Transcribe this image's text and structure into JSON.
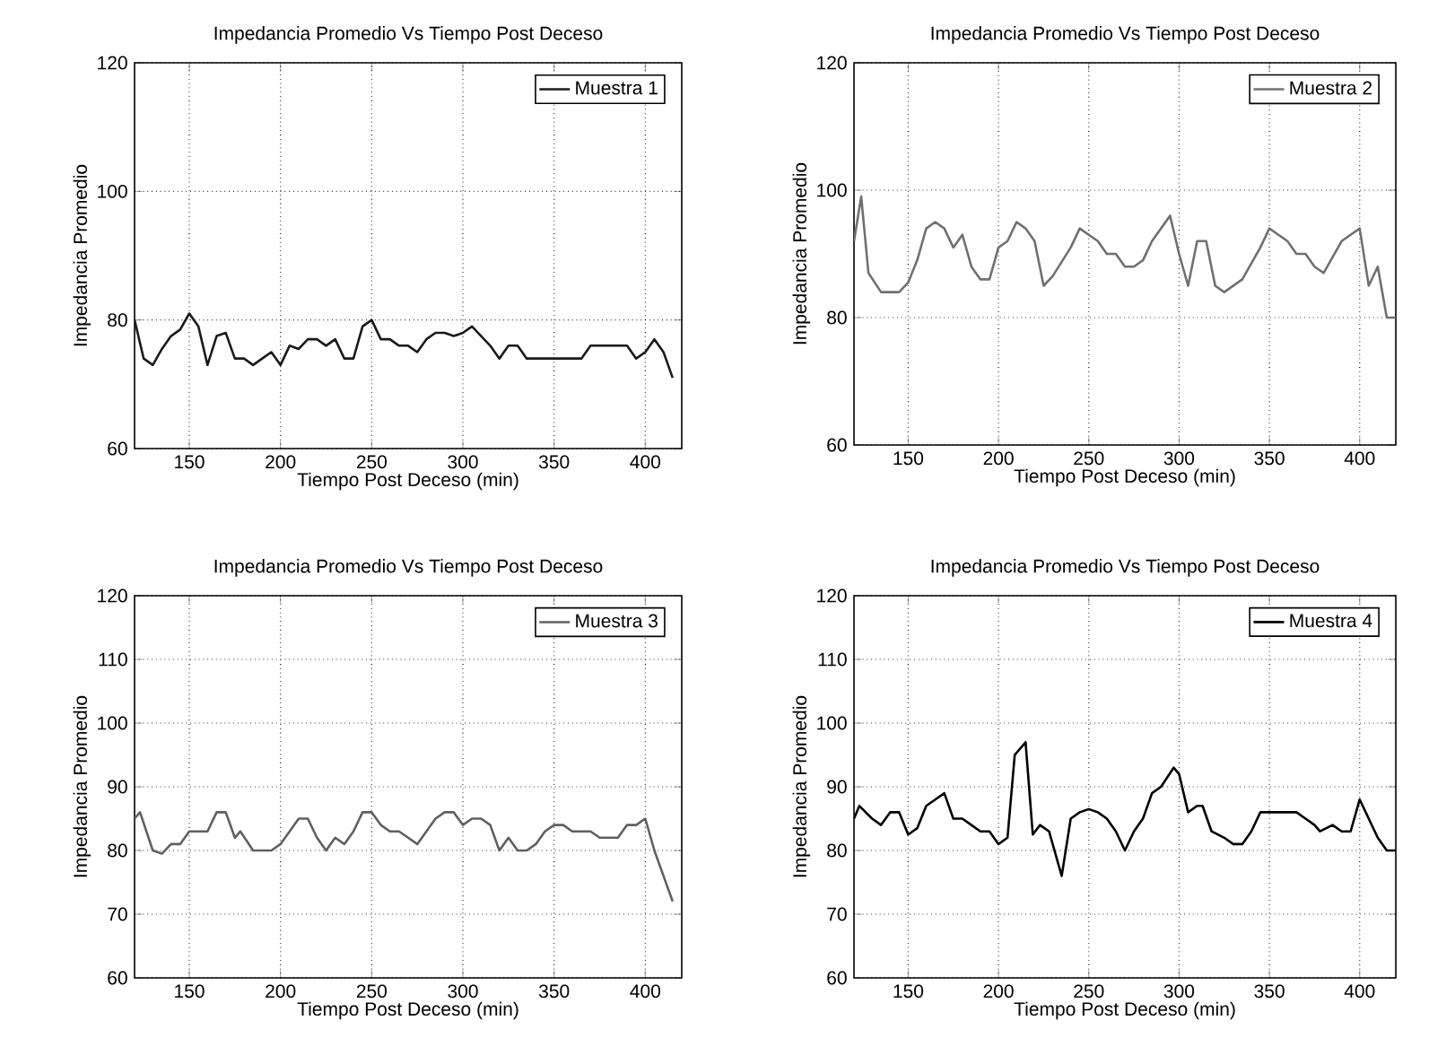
{
  "chart_data": [
    {
      "type": "line",
      "title": "Impedancia Promedio Vs Tiempo Post Deceso",
      "xlabel": "Tiempo Post Deceso (min)",
      "ylabel": "Impedancia Promedio",
      "xlim": [
        120,
        420
      ],
      "ylim": [
        60,
        120
      ],
      "xticks": [
        150,
        200,
        250,
        300,
        350,
        400
      ],
      "yticks": [
        60,
        80,
        100,
        120
      ],
      "grid": true,
      "legend": "top right",
      "series": [
        {
          "name": "Muestra 1",
          "color": "#1a1a1a",
          "x": [
            120,
            125,
            130,
            135,
            140,
            145,
            150,
            155,
            160,
            165,
            170,
            175,
            180,
            185,
            190,
            195,
            200,
            205,
            210,
            215,
            220,
            225,
            230,
            235,
            240,
            245,
            250,
            255,
            260,
            265,
            270,
            275,
            280,
            285,
            290,
            295,
            300,
            305,
            310,
            315,
            320,
            325,
            330,
            335,
            340,
            345,
            350,
            355,
            360,
            365,
            370,
            375,
            380,
            385,
            390,
            395,
            400,
            405,
            410,
            415
          ],
          "values": [
            80,
            74,
            73,
            75.5,
            77.5,
            78.5,
            81,
            79,
            73,
            77.5,
            78,
            74,
            74,
            73,
            74,
            75,
            73,
            76,
            75.5,
            77,
            77,
            76,
            77,
            74,
            74,
            79,
            80,
            77,
            77,
            76,
            76,
            75,
            77,
            78,
            78,
            77.5,
            78,
            79,
            77.5,
            76,
            74,
            76,
            76,
            74,
            74,
            74,
            74,
            74,
            74,
            74,
            76,
            76,
            76,
            76,
            76,
            74,
            75,
            77,
            75,
            71
          ]
        }
      ]
    },
    {
      "type": "line",
      "title": "Impedancia Promedio Vs Tiempo Post Deceso",
      "xlabel": "Tiempo Post Deceso (min)",
      "ylabel": "Impedancia Promedio",
      "xlim": [
        120,
        420
      ],
      "ylim": [
        60,
        120
      ],
      "xticks": [
        150,
        200,
        250,
        300,
        350,
        400
      ],
      "yticks": [
        60,
        80,
        100,
        120
      ],
      "grid": true,
      "legend": "top right",
      "series": [
        {
          "name": "Muestra 2",
          "color": "#707070",
          "x": [
            120,
            124,
            128,
            135,
            145,
            150,
            155,
            160,
            165,
            170,
            175,
            180,
            185,
            190,
            195,
            200,
            205,
            210,
            215,
            220,
            225,
            230,
            240,
            245,
            250,
            255,
            260,
            265,
            270,
            275,
            280,
            285,
            290,
            295,
            300,
            305,
            310,
            315,
            320,
            325,
            335,
            345,
            350,
            355,
            360,
            365,
            370,
            375,
            380,
            385,
            390,
            400,
            405,
            410,
            415,
            420
          ],
          "values": [
            92,
            99,
            87,
            84,
            84,
            85.5,
            89,
            94,
            95,
            94,
            91,
            93,
            88,
            86,
            86,
            91,
            92,
            95,
            94,
            92,
            85,
            86.5,
            91,
            94,
            93,
            92,
            90,
            90,
            88,
            88,
            89,
            92,
            94,
            96,
            90,
            85,
            92,
            92,
            85,
            84,
            86,
            91,
            94,
            93,
            92,
            90,
            90,
            88,
            87,
            89.5,
            92,
            94,
            85,
            88,
            80,
            80
          ]
        }
      ]
    },
    {
      "type": "line",
      "title": "Impedancia Promedio Vs Tiempo Post Deceso",
      "xlabel": "Tiempo Post Deceso (min)",
      "ylabel": "Impedancia Promedio",
      "xlim": [
        120,
        420
      ],
      "ylim": [
        60,
        120
      ],
      "xticks": [
        150,
        200,
        250,
        300,
        350,
        400
      ],
      "yticks": [
        60,
        70,
        80,
        90,
        100,
        110,
        120
      ],
      "grid": true,
      "legend": "top right",
      "series": [
        {
          "name": "Muestra 3",
          "color": "#606060",
          "x": [
            120,
            123,
            130,
            135,
            140,
            145,
            150,
            155,
            160,
            165,
            170,
            175,
            178,
            185,
            195,
            200,
            205,
            210,
            215,
            220,
            225,
            230,
            235,
            240,
            245,
            250,
            255,
            260,
            265,
            270,
            275,
            280,
            285,
            290,
            295,
            300,
            305,
            310,
            315,
            320,
            325,
            330,
            335,
            340,
            345,
            350,
            355,
            360,
            365,
            370,
            375,
            380,
            385,
            390,
            395,
            400,
            405,
            410,
            415
          ],
          "values": [
            85,
            86,
            80,
            79.5,
            81,
            81,
            83,
            83,
            83,
            86,
            86,
            82,
            83,
            80,
            80,
            81,
            83,
            85,
            85,
            82,
            80,
            82,
            81,
            83,
            86,
            86,
            84,
            83,
            83,
            82,
            81,
            83,
            85,
            86,
            86,
            84,
            85,
            85,
            84,
            80,
            82,
            80,
            80,
            81,
            83,
            84,
            84,
            83,
            83,
            83,
            82,
            82,
            82,
            84,
            84,
            85,
            80,
            76,
            72
          ]
        }
      ]
    },
    {
      "type": "line",
      "title": "Impedancia Promedio Vs Tiempo Post Deceso",
      "xlabel": "Tiempo Post Deceso (min)",
      "ylabel": "Impedancia Promedio",
      "xlim": [
        120,
        420
      ],
      "ylim": [
        60,
        120
      ],
      "xticks": [
        150,
        200,
        250,
        300,
        350,
        400
      ],
      "yticks": [
        60,
        70,
        80,
        90,
        100,
        110,
        120
      ],
      "grid": true,
      "legend": "top right",
      "series": [
        {
          "name": "Muestra 4",
          "color": "#000000",
          "x": [
            120,
            123,
            130,
            135,
            140,
            145,
            150,
            155,
            160,
            165,
            170,
            175,
            180,
            185,
            190,
            195,
            200,
            205,
            209,
            215,
            219,
            223,
            228,
            235,
            240,
            245,
            250,
            255,
            260,
            265,
            270,
            275,
            280,
            285,
            290,
            297,
            300,
            305,
            310,
            313,
            318,
            325,
            330,
            335,
            340,
            345,
            355,
            360,
            365,
            370,
            375,
            378,
            385,
            390,
            395,
            400,
            405,
            410,
            415,
            420
          ],
          "values": [
            85,
            87,
            85,
            84,
            86,
            86,
            82.5,
            83.5,
            87,
            88,
            89,
            85,
            85,
            84,
            83,
            83,
            81,
            82,
            95,
            97,
            82.5,
            84,
            83,
            76,
            85,
            86,
            86.5,
            86,
            85,
            83,
            80,
            83,
            85,
            89,
            90,
            93,
            92,
            86,
            87,
            87,
            83,
            82,
            81,
            81,
            83,
            86,
            86,
            86,
            86,
            85,
            84,
            83,
            84,
            83,
            83,
            88,
            85,
            82,
            80,
            80
          ]
        }
      ]
    }
  ]
}
